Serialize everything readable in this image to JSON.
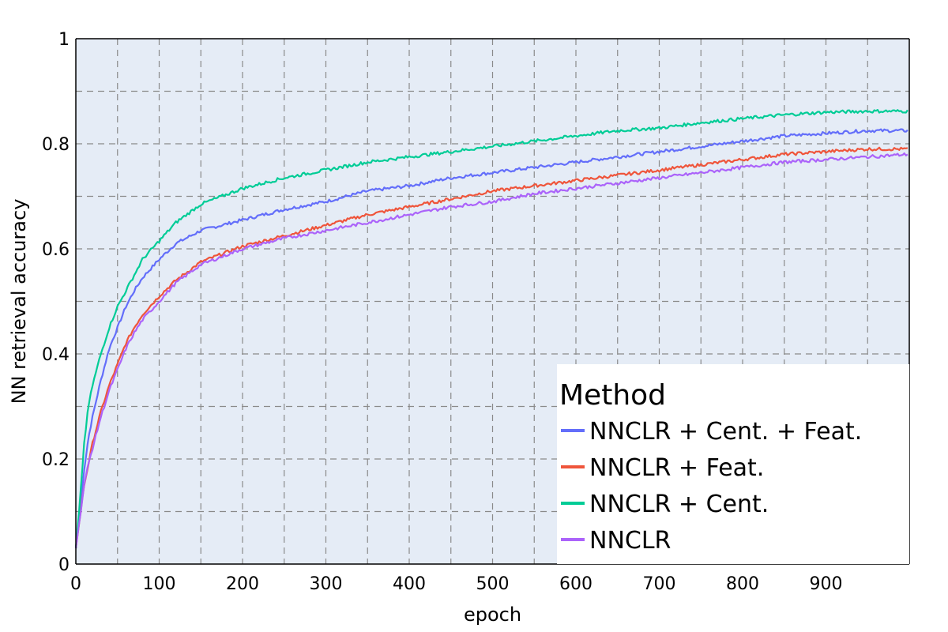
{
  "chart_data": {
    "type": "line",
    "xlabel": "epoch",
    "ylabel": "NN retrieval accuracy",
    "xlim": [
      0,
      1000
    ],
    "ylim": [
      0,
      1
    ],
    "x_ticks": [
      0,
      100,
      200,
      300,
      400,
      500,
      600,
      700,
      800,
      900
    ],
    "x_tick_labels": [
      "0",
      "100",
      "200",
      "300",
      "400",
      "500",
      "600",
      "700",
      "800",
      "900"
    ],
    "y_ticks": [
      0,
      0.2,
      0.4,
      0.6,
      0.8,
      1
    ],
    "y_tick_labels": [
      "0",
      "0.2",
      "0.4",
      "0.6",
      "0.8",
      "1"
    ],
    "grid": true,
    "legend": {
      "title": "Method",
      "placement": "bottom-right"
    },
    "series": [
      {
        "name": "NNCLR + Cent. + Feat.",
        "color": "#636efa",
        "x": [
          0,
          5,
          10,
          15,
          20,
          30,
          40,
          50,
          60,
          70,
          80,
          100,
          120,
          150,
          200,
          250,
          300,
          350,
          400,
          450,
          500,
          550,
          600,
          650,
          700,
          750,
          800,
          850,
          900,
          950,
          999
        ],
        "values": [
          0.03,
          0.1,
          0.18,
          0.24,
          0.28,
          0.35,
          0.41,
          0.45,
          0.49,
          0.52,
          0.545,
          0.58,
          0.61,
          0.635,
          0.655,
          0.675,
          0.69,
          0.71,
          0.72,
          0.735,
          0.745,
          0.755,
          0.765,
          0.775,
          0.785,
          0.795,
          0.805,
          0.815,
          0.82,
          0.825,
          0.825
        ]
      },
      {
        "name": "NNCLR + Feat.",
        "color": "#ef553b",
        "x": [
          0,
          5,
          10,
          15,
          20,
          30,
          40,
          50,
          60,
          70,
          80,
          100,
          120,
          150,
          200,
          250,
          300,
          350,
          400,
          450,
          500,
          550,
          600,
          650,
          700,
          750,
          800,
          850,
          900,
          950,
          999
        ],
        "values": [
          0.03,
          0.09,
          0.15,
          0.19,
          0.23,
          0.29,
          0.34,
          0.38,
          0.42,
          0.45,
          0.475,
          0.51,
          0.54,
          0.575,
          0.605,
          0.625,
          0.645,
          0.665,
          0.68,
          0.695,
          0.71,
          0.72,
          0.73,
          0.74,
          0.75,
          0.76,
          0.77,
          0.78,
          0.785,
          0.79,
          0.79
        ]
      },
      {
        "name": "NNCLR + Cent.",
        "color": "#00cc96",
        "x": [
          0,
          5,
          10,
          15,
          20,
          30,
          40,
          50,
          60,
          70,
          80,
          100,
          120,
          150,
          200,
          250,
          300,
          350,
          400,
          450,
          500,
          550,
          600,
          650,
          700,
          750,
          800,
          850,
          900,
          950,
          999
        ],
        "values": [
          0.03,
          0.12,
          0.23,
          0.3,
          0.34,
          0.4,
          0.45,
          0.49,
          0.52,
          0.55,
          0.58,
          0.615,
          0.65,
          0.685,
          0.715,
          0.735,
          0.75,
          0.765,
          0.775,
          0.785,
          0.795,
          0.805,
          0.815,
          0.825,
          0.83,
          0.84,
          0.848,
          0.855,
          0.86,
          0.862,
          0.862
        ]
      },
      {
        "name": "NNCLR",
        "color": "#ab63fa",
        "x": [
          0,
          5,
          10,
          15,
          20,
          30,
          40,
          50,
          60,
          70,
          80,
          100,
          120,
          150,
          200,
          250,
          300,
          350,
          400,
          450,
          500,
          550,
          600,
          650,
          700,
          750,
          800,
          850,
          900,
          950,
          999
        ],
        "values": [
          0.03,
          0.09,
          0.15,
          0.19,
          0.22,
          0.28,
          0.33,
          0.37,
          0.41,
          0.44,
          0.465,
          0.5,
          0.535,
          0.57,
          0.6,
          0.62,
          0.635,
          0.65,
          0.665,
          0.68,
          0.69,
          0.705,
          0.715,
          0.725,
          0.735,
          0.745,
          0.755,
          0.765,
          0.77,
          0.775,
          0.78
        ]
      }
    ]
  }
}
